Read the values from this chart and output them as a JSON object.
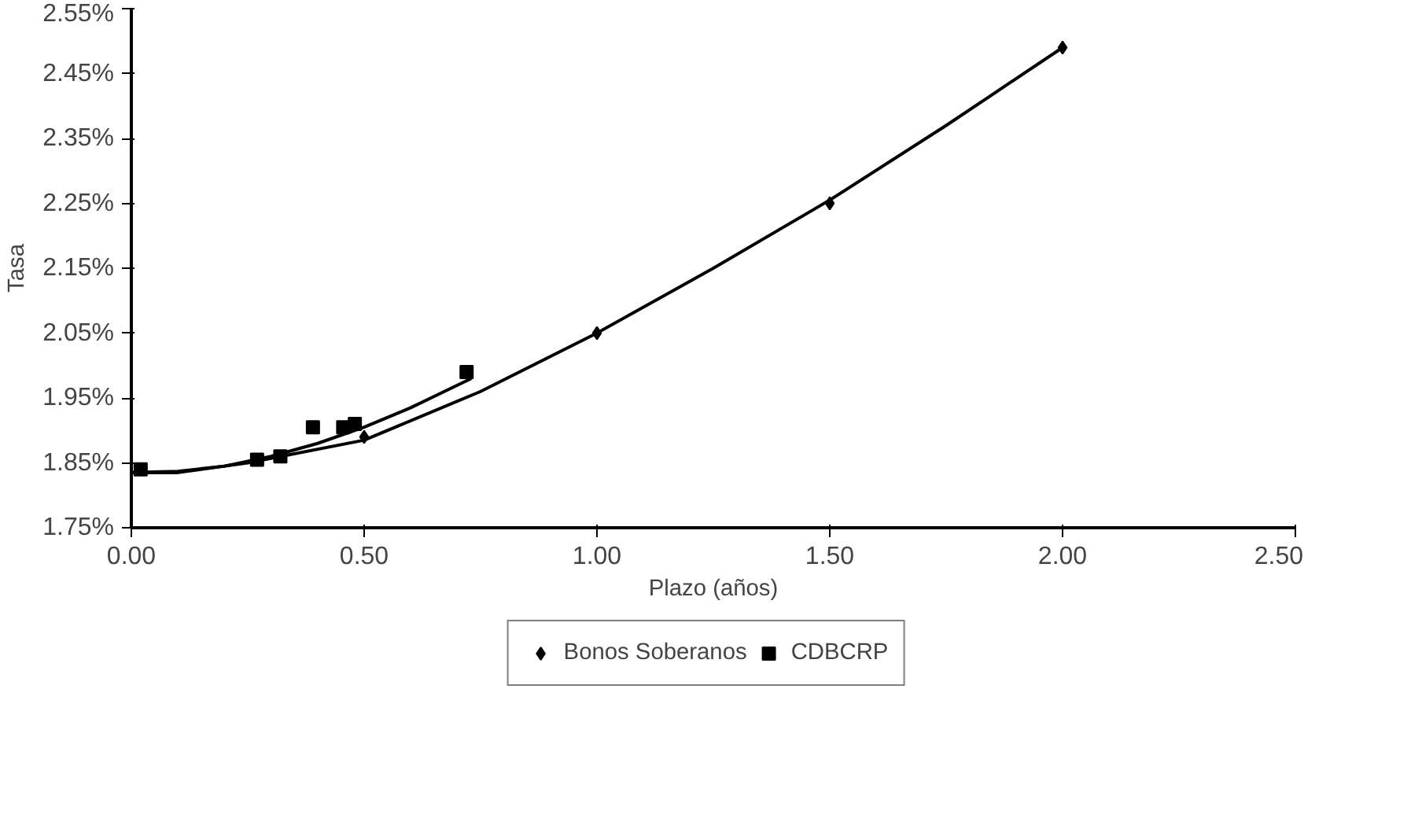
{
  "chart_data": {
    "type": "scatter",
    "xlabel": "Plazo (años)",
    "ylabel": "Tasa",
    "xlim": [
      0,
      2.5
    ],
    "ylim": [
      1.75,
      2.55
    ],
    "xticks": [
      {
        "value": 0,
        "label": "0.00"
      },
      {
        "value": 0.5,
        "label": "0.50"
      },
      {
        "value": 1,
        "label": "1.00"
      },
      {
        "value": 1.5,
        "label": "1.50"
      },
      {
        "value": 2,
        "label": "2.00"
      },
      {
        "value": 2.5,
        "label": "2.50"
      }
    ],
    "yticks": [
      {
        "value": 1.75,
        "label": "1.75%"
      },
      {
        "value": 1.85,
        "label": "1.85%"
      },
      {
        "value": 1.95,
        "label": "1.95%"
      },
      {
        "value": 2.05,
        "label": "2.05%"
      },
      {
        "value": 2.15,
        "label": "2.15%"
      },
      {
        "value": 2.25,
        "label": "2.25%"
      },
      {
        "value": 2.35,
        "label": "2.35%"
      },
      {
        "value": 2.45,
        "label": "2.45%"
      },
      {
        "value": 2.55,
        "label": "2.55%"
      }
    ],
    "grid": false,
    "legend": "bottom",
    "series": [
      {
        "name": "Bonos Soberanos",
        "marker": "diamond",
        "color": "#000000",
        "x": [
          0.5,
          1.0,
          1.5,
          2.0
        ],
        "values": [
          1.89,
          2.05,
          2.25,
          2.49
        ]
      },
      {
        "name": "CDBCRP",
        "marker": "square",
        "color": "#000000",
        "x": [
          0.02,
          0.27,
          0.32,
          0.39,
          0.455,
          0.48,
          0.72
        ],
        "values": [
          1.84,
          1.855,
          1.86,
          1.905,
          1.905,
          1.91,
          1.99
        ]
      },
      {
        "type": "line",
        "marker": "none",
        "color": "#000000",
        "x": [
          0,
          0.1,
          0.25,
          0.5,
          0.75,
          1.0,
          1.25,
          1.5,
          1.75,
          2.0
        ],
        "values": [
          1.835,
          1.835,
          1.85,
          1.885,
          1.96,
          2.05,
          2.15,
          2.255,
          2.37,
          2.49
        ]
      },
      {
        "type": "line",
        "marker": "none",
        "color": "#000000",
        "x": [
          0,
          0.1,
          0.2,
          0.3,
          0.4,
          0.5,
          0.6,
          0.73
        ],
        "values": [
          1.835,
          1.837,
          1.845,
          1.86,
          1.88,
          1.905,
          1.935,
          1.98
        ]
      }
    ]
  }
}
